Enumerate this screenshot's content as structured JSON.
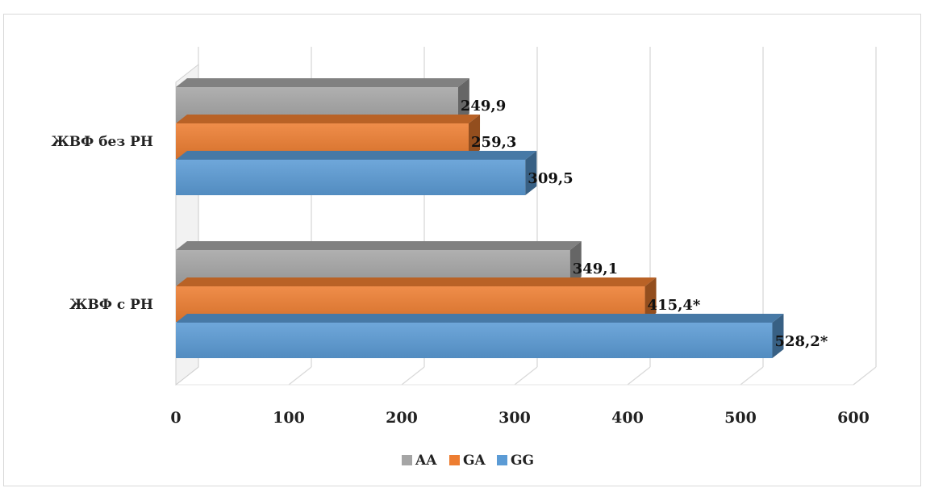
{
  "chart_data": {
    "type": "bar",
    "orientation": "horizontal",
    "categories": [
      "ЖВФ без РН",
      "ЖВФ с РН"
    ],
    "series": [
      {
        "name": "AA",
        "color": "#a5a5a5",
        "values": [
          249.9,
          349.1
        ],
        "labels": [
          "249,9",
          "349,1"
        ]
      },
      {
        "name": "GA",
        "color": "#ed7d31",
        "values": [
          259.3,
          415.4
        ],
        "labels": [
          "259,3",
          "415,4*"
        ]
      },
      {
        "name": "GG",
        "color": "#5b9bd5",
        "values": [
          309.5,
          528.2
        ],
        "labels": [
          "309,5",
          "528,2*"
        ]
      }
    ],
    "xlim": [
      0,
      600
    ],
    "xticks": [
      0,
      100,
      200,
      300,
      400,
      500,
      600
    ],
    "xtick_labels": [
      "0",
      "100",
      "200",
      "300",
      "400",
      "500",
      "600"
    ],
    "grid": true,
    "legend_position": "bottom",
    "style": "3d"
  }
}
